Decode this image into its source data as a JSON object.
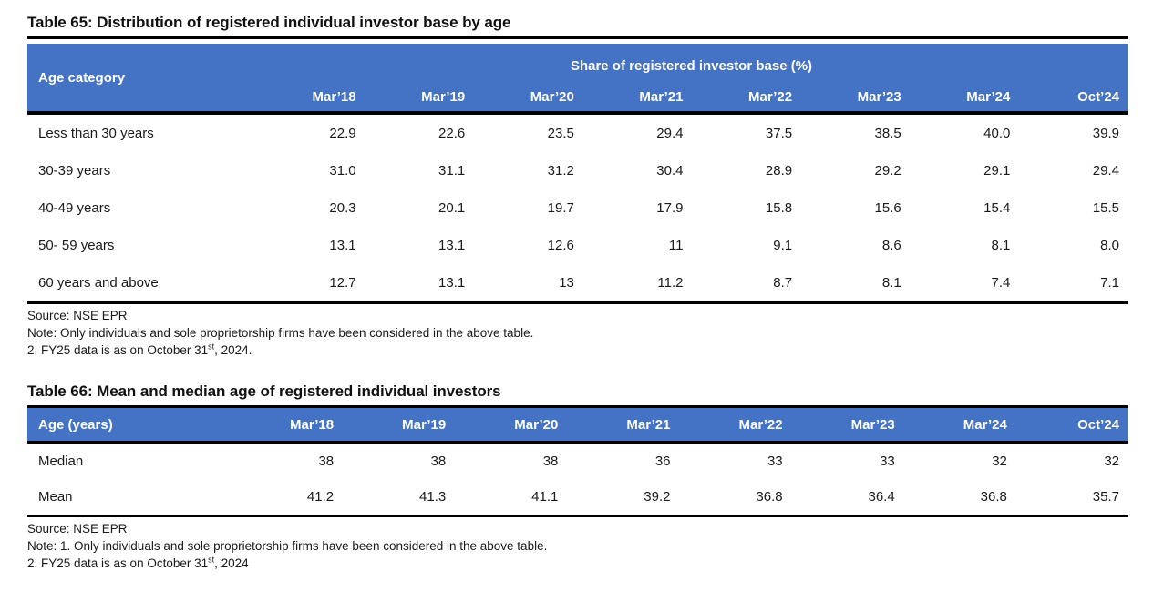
{
  "colors": {
    "header_bg": "#4472C4",
    "header_text": "#FFFFFF",
    "heavy_border": "#000000",
    "body_text": "#1A1A1A"
  },
  "table65": {
    "title": "Table 65: Distribution of registered individual investor base by age",
    "corner_header": "Age category",
    "span_header": "Share of registered investor base (%)",
    "columns": [
      "Mar’18",
      "Mar’19",
      "Mar’20",
      "Mar’21",
      "Mar’22",
      "Mar’23",
      "Mar’24",
      "Oct’24"
    ],
    "rows": [
      {
        "label": "Less than 30 years",
        "values": [
          "22.9",
          "22.6",
          "23.5",
          "29.4",
          "37.5",
          "38.5",
          "40.0",
          "39.9"
        ]
      },
      {
        "label": "30-39 years",
        "values": [
          "31.0",
          "31.1",
          "31.2",
          "30.4",
          "28.9",
          "29.2",
          "29.1",
          "29.4"
        ]
      },
      {
        "label": "40-49 years",
        "values": [
          "20.3",
          "20.1",
          "19.7",
          "17.9",
          "15.8",
          "15.6",
          "15.4",
          "15.5"
        ]
      },
      {
        "label": "50- 59 years",
        "values": [
          "13.1",
          "13.1",
          "12.6",
          "11",
          "9.1",
          "8.6",
          "8.1",
          "8.0"
        ]
      },
      {
        "label": "60 years and above",
        "values": [
          "12.7",
          "13.1",
          "13",
          "11.2",
          "8.7",
          "8.1",
          "7.4",
          "7.1"
        ]
      }
    ],
    "source": "Source: NSE EPR",
    "note1": "Note: Only individuals and sole proprietorship firms have been considered in the above table.",
    "note2_prefix": "2. FY25 data is as on October 31",
    "note2_sup": "st",
    "note2_suffix": ", 2024."
  },
  "table66": {
    "title": "Table 66: Mean and median age of registered individual investors",
    "corner_header": "Age (years)",
    "columns": [
      "Mar’18",
      "Mar’19",
      "Mar’20",
      "Mar’21",
      "Mar’22",
      "Mar’23",
      "Mar’24",
      "Oct’24"
    ],
    "rows": [
      {
        "label": "Median",
        "values": [
          "38",
          "38",
          "38",
          "36",
          "33",
          "33",
          "32",
          "32"
        ]
      },
      {
        "label": "Mean",
        "values": [
          "41.2",
          "41.3",
          "41.1",
          "39.2",
          "36.8",
          "36.4",
          "36.8",
          "35.7"
        ]
      }
    ],
    "source": "Source: NSE EPR",
    "note1": "Note: 1. Only individuals and sole proprietorship firms have been considered in the above table.",
    "note2_prefix": "2. FY25 data is as on October 31",
    "note2_sup": "st",
    "note2_suffix": ", 2024"
  }
}
